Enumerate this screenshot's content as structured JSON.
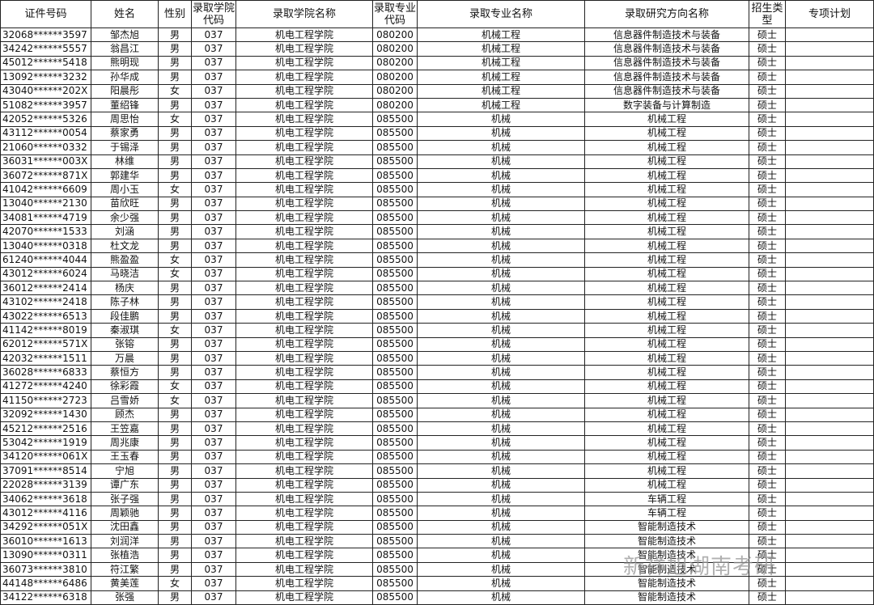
{
  "header": [
    "证件号码",
    "姓名",
    "性别",
    "录取学院代码",
    "录取学院名称",
    "录取专业代码",
    "录取专业名称",
    "录取研究方向名称",
    "招生类型",
    "专项计划"
  ],
  "rows": [
    [
      "32068******3597",
      "邹杰旭",
      "男",
      "037",
      "机电工程学院",
      "080200",
      "机械工程",
      "信息器件制造技术与装备",
      "硕士"
    ],
    [
      "34242******5557",
      "翁昌江",
      "男",
      "037",
      "机电工程学院",
      "080200",
      "机械工程",
      "信息器件制造技术与装备",
      "硕士"
    ],
    [
      "45012******5418",
      "熊明现",
      "男",
      "037",
      "机电工程学院",
      "080200",
      "机械工程",
      "信息器件制造技术与装备",
      "硕士"
    ],
    [
      "13092******3232",
      "孙华成",
      "男",
      "037",
      "机电工程学院",
      "080200",
      "机械工程",
      "信息器件制造技术与装备",
      "硕士"
    ],
    [
      "43040******202X",
      "阳晨彤",
      "女",
      "037",
      "机电工程学院",
      "080200",
      "机械工程",
      "信息器件制造技术与装备",
      "硕士"
    ],
    [
      "51082******3957",
      "董绍锋",
      "男",
      "037",
      "机电工程学院",
      "080200",
      "机械工程",
      "数字装备与计算制造",
      "硕士"
    ],
    [
      "42052******5326",
      "周思怡",
      "女",
      "037",
      "机电工程学院",
      "085500",
      "机械",
      "机械工程",
      "硕士"
    ],
    [
      "43112******0054",
      "蔡家勇",
      "男",
      "037",
      "机电工程学院",
      "085500",
      "机械",
      "机械工程",
      "硕士"
    ],
    [
      "21060******0332",
      "于锡泽",
      "男",
      "037",
      "机电工程学院",
      "085500",
      "机械",
      "机械工程",
      "硕士"
    ],
    [
      "36031******003X",
      "林维",
      "男",
      "037",
      "机电工程学院",
      "085500",
      "机械",
      "机械工程",
      "硕士"
    ],
    [
      "36072******871X",
      "郭建华",
      "男",
      "037",
      "机电工程学院",
      "085500",
      "机械",
      "机械工程",
      "硕士"
    ],
    [
      "41042******6609",
      "周小玉",
      "女",
      "037",
      "机电工程学院",
      "085500",
      "机械",
      "机械工程",
      "硕士"
    ],
    [
      "13040******2130",
      "苗欣旺",
      "男",
      "037",
      "机电工程学院",
      "085500",
      "机械",
      "机械工程",
      "硕士"
    ],
    [
      "34081******4719",
      "余少强",
      "男",
      "037",
      "机电工程学院",
      "085500",
      "机械",
      "机械工程",
      "硕士"
    ],
    [
      "42070******1533",
      "刘涵",
      "男",
      "037",
      "机电工程学院",
      "085500",
      "机械",
      "机械工程",
      "硕士"
    ],
    [
      "13040******0318",
      "杜文龙",
      "男",
      "037",
      "机电工程学院",
      "085500",
      "机械",
      "机械工程",
      "硕士"
    ],
    [
      "61240******4044",
      "熊盈盈",
      "女",
      "037",
      "机电工程学院",
      "085500",
      "机械",
      "机械工程",
      "硕士"
    ],
    [
      "43012******6024",
      "马晓洁",
      "女",
      "037",
      "机电工程学院",
      "085500",
      "机械",
      "机械工程",
      "硕士"
    ],
    [
      "36012******2414",
      "杨庆",
      "男",
      "037",
      "机电工程学院",
      "085500",
      "机械",
      "机械工程",
      "硕士"
    ],
    [
      "43102******2418",
      "陈子林",
      "男",
      "037",
      "机电工程学院",
      "085500",
      "机械",
      "机械工程",
      "硕士"
    ],
    [
      "43022******6513",
      "段佳鹏",
      "男",
      "037",
      "机电工程学院",
      "085500",
      "机械",
      "机械工程",
      "硕士"
    ],
    [
      "41142******8019",
      "秦淑琪",
      "女",
      "037",
      "机电工程学院",
      "085500",
      "机械",
      "机械工程",
      "硕士"
    ],
    [
      "62012******571X",
      "张镕",
      "男",
      "037",
      "机电工程学院",
      "085500",
      "机械",
      "机械工程",
      "硕士"
    ],
    [
      "42032******1511",
      "万晨",
      "男",
      "037",
      "机电工程学院",
      "085500",
      "机械",
      "机械工程",
      "硕士"
    ],
    [
      "36028******6833",
      "蔡恒方",
      "男",
      "037",
      "机电工程学院",
      "085500",
      "机械",
      "机械工程",
      "硕士"
    ],
    [
      "41272******4240",
      "徐彩霞",
      "女",
      "037",
      "机电工程学院",
      "085500",
      "机械",
      "机械工程",
      "硕士"
    ],
    [
      "41150******2723",
      "吕雪娇",
      "女",
      "037",
      "机电工程学院",
      "085500",
      "机械",
      "机械工程",
      "硕士"
    ],
    [
      "32092******1430",
      "顾杰",
      "男",
      "037",
      "机电工程学院",
      "085500",
      "机械",
      "机械工程",
      "硕士"
    ],
    [
      "45212******2516",
      "王笠嘉",
      "男",
      "037",
      "机电工程学院",
      "085500",
      "机械",
      "机械工程",
      "硕士"
    ],
    [
      "53042******1919",
      "周兆康",
      "男",
      "037",
      "机电工程学院",
      "085500",
      "机械",
      "机械工程",
      "硕士"
    ],
    [
      "34120******061X",
      "王玉春",
      "男",
      "037",
      "机电工程学院",
      "085500",
      "机械",
      "机械工程",
      "硕士"
    ],
    [
      "37091******8514",
      "宁旭",
      "男",
      "037",
      "机电工程学院",
      "085500",
      "机械",
      "机械工程",
      "硕士"
    ],
    [
      "22028******3139",
      "谭广东",
      "男",
      "037",
      "机电工程学院",
      "085500",
      "机械",
      "机械工程",
      "硕士"
    ],
    [
      "34062******3618",
      "张子强",
      "男",
      "037",
      "机电工程学院",
      "085500",
      "机械",
      "车辆工程",
      "硕士"
    ],
    [
      "43012******4116",
      "周颖驰",
      "男",
      "037",
      "机电工程学院",
      "085500",
      "机械",
      "车辆工程",
      "硕士"
    ],
    [
      "34292******051X",
      "沈田鑫",
      "男",
      "037",
      "机电工程学院",
      "085500",
      "机械",
      "智能制造技术",
      "硕士"
    ],
    [
      "36010******1613",
      "刘润洋",
      "男",
      "037",
      "机电工程学院",
      "085500",
      "机械",
      "智能制造技术",
      "硕士"
    ],
    [
      "13090******0311",
      "张植浩",
      "男",
      "037",
      "机电工程学院",
      "085500",
      "机械",
      "智能制造技术",
      "硕士"
    ],
    [
      "36073******3810",
      "符江繁",
      "男",
      "037",
      "机电工程学院",
      "085500",
      "机械",
      "智能制造技术",
      "硕士"
    ],
    [
      "44148******6486",
      "黄美莲",
      "女",
      "037",
      "机电工程学院",
      "085500",
      "机械",
      "智能制造技术",
      "硕士"
    ],
    [
      "34122******6318",
      "张强",
      "男",
      "037",
      "机电工程学院",
      "085500",
      "机械",
      "智能制造技术",
      "硕士"
    ]
  ],
  "watermark": "新祥旭湖南考研"
}
